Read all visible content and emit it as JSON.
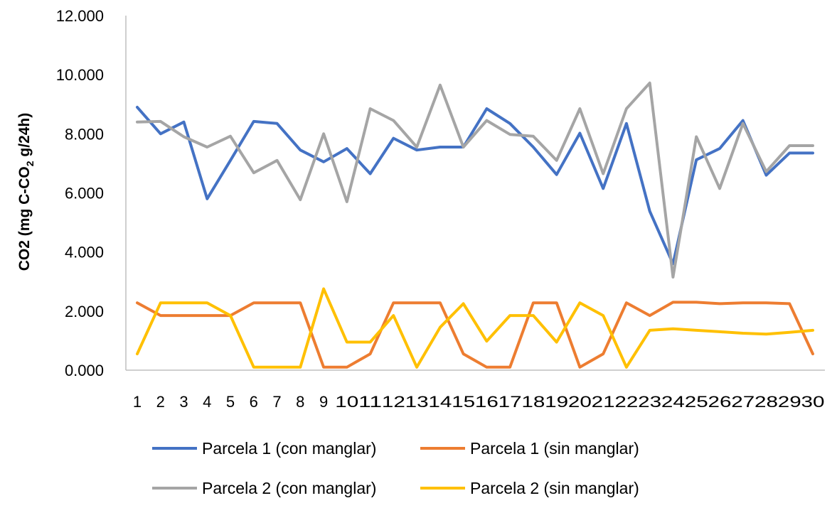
{
  "chart_data": {
    "type": "line",
    "title": "",
    "xlabel": "",
    "ylabel": "CO2 (mg C-CO2 g/24h)",
    "ylabel_parts": {
      "main": "CO2 (mg C-CO",
      "sub": "2",
      "tail": " g/24h)"
    },
    "ylim": [
      0,
      12
    ],
    "yticks": [
      0,
      2,
      4,
      6,
      8,
      10,
      12
    ],
    "ytick_labels": [
      "0.000",
      "2.000",
      "4.000",
      "6.000",
      "8.000",
      "10.000",
      "12.000"
    ],
    "grid": false,
    "legend_position": "bottom",
    "categories": [
      "1",
      "2",
      "3",
      "4",
      "5",
      "6",
      "7",
      "8",
      "9",
      "10",
      "11",
      "12",
      "13",
      "14",
      "15",
      "16",
      "17",
      "18",
      "19",
      "20",
      "21",
      "22",
      "23",
      "24",
      "25",
      "26",
      "27",
      "28",
      "29",
      "30"
    ],
    "series": [
      {
        "name": "Parcela 1 (con manglar)",
        "color": "#4472C4",
        "values": [
          8.9,
          8.0,
          8.4,
          5.8,
          7.1,
          8.42,
          8.35,
          7.45,
          7.05,
          7.5,
          6.65,
          7.85,
          7.45,
          7.55,
          7.55,
          8.85,
          8.35,
          7.55,
          6.62,
          8.02,
          6.15,
          8.35,
          5.38,
          3.6,
          7.12,
          7.5,
          8.45,
          6.6,
          7.35,
          7.35
        ]
      },
      {
        "name": "Parcela 1 (sin manglar)",
        "color": "#ED7D31",
        "values": [
          2.28,
          1.85,
          1.85,
          1.85,
          1.85,
          2.28,
          2.28,
          2.28,
          0.1,
          0.1,
          0.55,
          2.28,
          2.28,
          2.28,
          0.55,
          0.1,
          0.1,
          2.28,
          2.28,
          0.1,
          0.55,
          2.28,
          1.85,
          2.3,
          2.3,
          2.25,
          2.28,
          2.28,
          2.25,
          0.55
        ]
      },
      {
        "name": "Parcela 2 (con manglar)",
        "color": "#A5A5A5",
        "values": [
          8.4,
          8.42,
          7.9,
          7.55,
          7.92,
          6.68,
          7.1,
          5.77,
          8.0,
          5.7,
          8.85,
          8.45,
          7.55,
          9.65,
          7.55,
          8.45,
          7.98,
          7.92,
          7.1,
          8.85,
          6.65,
          8.85,
          9.72,
          3.15,
          7.9,
          6.15,
          8.35,
          6.72,
          7.6,
          7.6
        ]
      },
      {
        "name": "Parcela 2 (sin manglar)",
        "color": "#FFC000",
        "values": [
          0.55,
          2.28,
          2.28,
          2.28,
          1.85,
          0.1,
          0.1,
          0.1,
          2.75,
          0.95,
          0.95,
          1.85,
          0.1,
          1.45,
          2.25,
          0.98,
          1.85,
          1.85,
          0.95,
          2.28,
          1.85,
          0.1,
          1.35,
          1.4,
          1.35,
          1.3,
          1.25,
          1.22,
          1.28,
          1.35
        ]
      }
    ]
  },
  "legend": {
    "items": [
      {
        "label": "Parcela 1 (con manglar)",
        "color": "#4472C4"
      },
      {
        "label": "Parcela 1 (sin manglar)",
        "color": "#ED7D31"
      },
      {
        "label": "Parcela 2 (con manglar)",
        "color": "#A5A5A5"
      },
      {
        "label": "Parcela 2 (sin manglar)",
        "color": "#FFC000"
      }
    ]
  }
}
